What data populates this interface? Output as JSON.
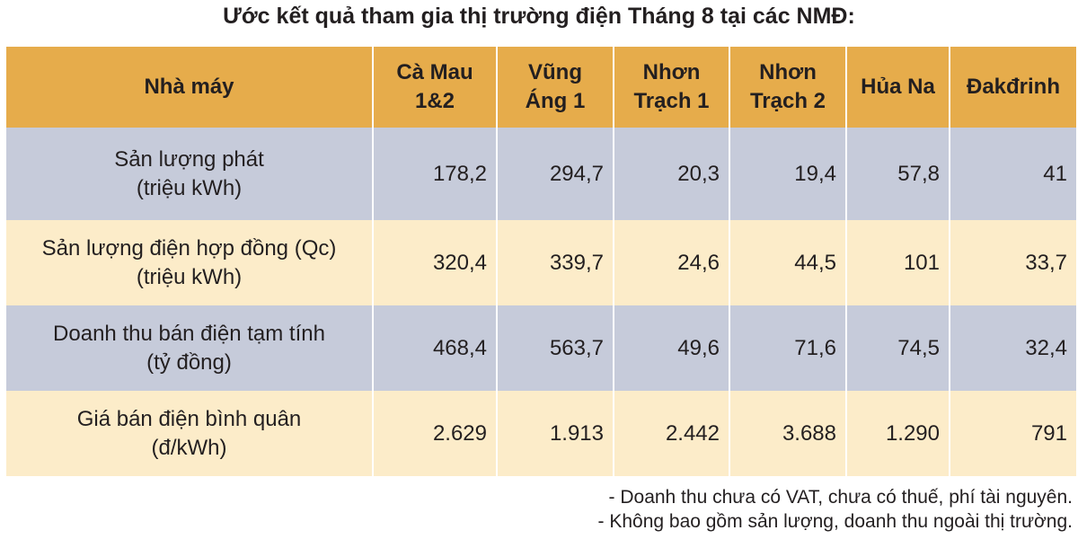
{
  "title": "Ước kết quả tham gia thị trường điện Tháng 8 tại các NMĐ:",
  "table": {
    "header": [
      [
        "Nhà máy"
      ],
      [
        "Cà Mau",
        "1&2"
      ],
      [
        "Vũng",
        "Áng 1"
      ],
      [
        "Nhơn",
        "Trạch 1"
      ],
      [
        "Nhơn",
        "Trạch 2"
      ],
      [
        "Hủa Na"
      ],
      [
        "Đakđrinh"
      ]
    ],
    "rows": [
      {
        "label": [
          "Sản lượng phát",
          "(triệu kWh)"
        ],
        "cells": [
          "178,2",
          "294,7",
          "20,3",
          "19,4",
          "57,8",
          "41"
        ]
      },
      {
        "label": [
          "Sản lượng điện hợp đồng (Qc)",
          "(triệu kWh)"
        ],
        "cells": [
          "320,4",
          "339,7",
          "24,6",
          "44,5",
          "101",
          "33,7"
        ]
      },
      {
        "label": [
          "Doanh thu bán điện tạm tính",
          "(tỷ đồng)"
        ],
        "cells": [
          "468,4",
          "563,7",
          "49,6",
          "71,6",
          "74,5",
          "32,4"
        ]
      },
      {
        "label": [
          "Giá bán điện bình quân",
          "(đ/kWh)"
        ],
        "cells": [
          "2.629",
          "1.913",
          "2.442",
          "3.688",
          "1.290",
          "791"
        ]
      }
    ]
  },
  "notes": [
    "- Doanh thu chưa có VAT, chưa có thuế, phí tài nguyên.",
    "- Không bao gồm sản lượng, doanh thu ngoài thị trường."
  ]
}
